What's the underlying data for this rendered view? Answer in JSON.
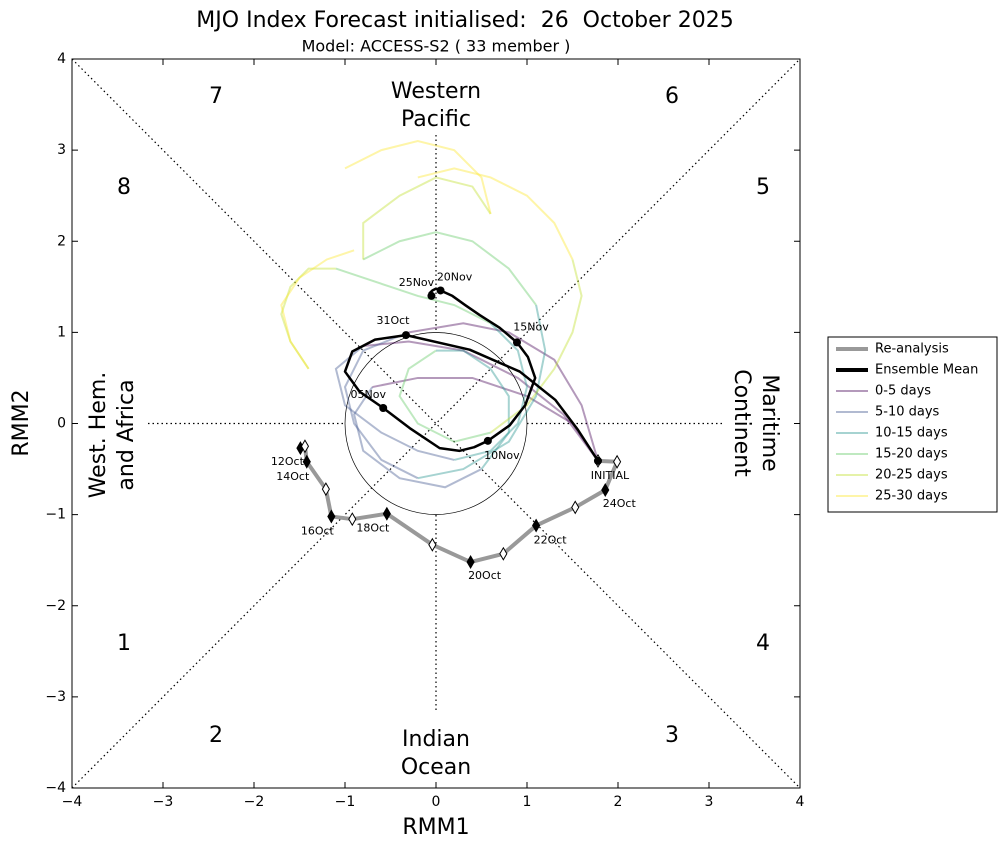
{
  "chart_data": {
    "type": "phase",
    "title": "MJO Index Forecast initialised:  26  October 2025",
    "subtitle": "Model: ACCESS-S2 ( 33 member )",
    "x_label": "RMM1",
    "y_label": "RMM2",
    "xlim": [
      -4,
      4
    ],
    "ylim": [
      -4,
      4
    ],
    "xticks": [
      {
        "value": -4,
        "label": "−4"
      },
      {
        "value": -3,
        "label": "−3"
      },
      {
        "value": -2,
        "label": "−2"
      },
      {
        "value": -1,
        "label": "−1"
      },
      0,
      1,
      2,
      3,
      4
    ],
    "yticks": [
      {
        "value": -4,
        "label": "−4"
      },
      {
        "value": -3,
        "label": "−3"
      },
      {
        "value": -2,
        "label": "−2"
      },
      {
        "value": -1,
        "label": "−1"
      },
      0,
      1,
      2,
      3,
      4
    ],
    "phases": [
      1,
      2,
      3,
      4,
      5,
      6,
      7,
      8
    ],
    "regions": [
      [
        "Western",
        "Pacific"
      ],
      [
        "Indian",
        "Ocean"
      ],
      [
        "West. Hem.",
        "and Africa"
      ],
      [
        "Maritime",
        "Continent"
      ]
    ],
    "legend": "right",
    "member_alpha": 0.4,
    "series": [
      {
        "name": "Re-analysis",
        "color": "#999999",
        "x": [
          -1.49,
          -1.44,
          -1.42,
          -1.21,
          -1.15,
          -0.92,
          -0.54,
          -0.04,
          0.38,
          0.74,
          1.1,
          1.53,
          1.86,
          1.99,
          1.78
        ],
        "values": [
          -0.27,
          -0.25,
          -0.42,
          -0.72,
          -1.02,
          -1.05,
          -0.99,
          -1.33,
          -1.52,
          -1.43,
          -1.12,
          -0.92,
          -0.73,
          -0.42,
          -0.41
        ],
        "labels": [
          "12Oct",
          null,
          "14Oct",
          null,
          "16Oct",
          null,
          "18Oct",
          null,
          "20Oct",
          null,
          "22Oct",
          null,
          "24Oct",
          null,
          null
        ]
      },
      {
        "name": "Ensemble Mean",
        "color": "#000000",
        "x": [
          1.78,
          1.56,
          1.31,
          0.92,
          0.37,
          -0.33,
          -0.67,
          -0.92,
          -1.0,
          -0.84,
          -0.58,
          -0.29,
          0.04,
          0.26,
          0.42,
          0.57,
          0.81,
          0.98,
          1.09,
          1.01,
          0.89,
          0.7,
          0.48,
          0.32,
          0.18,
          0.05,
          0.0,
          -0.04,
          -0.07,
          -0.07,
          -0.05
        ],
        "values": [
          -0.41,
          -0.07,
          0.26,
          0.57,
          0.81,
          0.97,
          0.92,
          0.79,
          0.57,
          0.35,
          0.17,
          -0.05,
          -0.27,
          -0.3,
          -0.26,
          -0.19,
          -0.02,
          0.2,
          0.5,
          0.73,
          0.89,
          1.05,
          1.19,
          1.3,
          1.4,
          1.46,
          1.48,
          1.46,
          1.43,
          1.4,
          1.4
        ],
        "labels": [
          "INITIAL",
          null,
          null,
          null,
          null,
          "31Oct",
          null,
          null,
          null,
          null,
          "05Nov",
          null,
          null,
          null,
          null,
          "10Nov",
          null,
          null,
          null,
          null,
          "15Nov",
          null,
          null,
          null,
          null,
          "20Nov",
          null,
          null,
          null,
          null,
          "25Nov"
        ]
      },
      {
        "name": "0-5 days",
        "color": "#440154",
        "members": [
          {
            "x": [
              1.78,
              1.4,
              0.9,
              0.3,
              -0.3,
              -0.8
            ],
            "values": [
              -0.41,
              0.1,
              0.5,
              0.8,
              0.9,
              0.85
            ]
          },
          {
            "x": [
              1.78,
              1.6,
              1.3,
              0.8,
              0.3,
              -0.3
            ],
            "values": [
              -0.41,
              0.2,
              0.7,
              1.0,
              1.1,
              1.0
            ]
          },
          {
            "x": [
              1.78,
              1.5,
              1.0,
              0.4,
              -0.2,
              -0.7
            ],
            "values": [
              -0.41,
              0.0,
              0.3,
              0.5,
              0.5,
              0.4
            ]
          }
        ]
      },
      {
        "name": "5-10 days",
        "color": "#3b528b",
        "members": [
          {
            "x": [
              -0.8,
              -1.1,
              -1.0,
              -0.6,
              -0.2,
              0.2
            ],
            "values": [
              0.85,
              0.6,
              0.2,
              -0.1,
              -0.3,
              -0.4
            ]
          },
          {
            "x": [
              -0.3,
              -0.8,
              -1.0,
              -0.9,
              -0.6,
              -0.2
            ],
            "values": [
              1.0,
              0.8,
              0.4,
              0.0,
              -0.4,
              -0.6
            ]
          },
          {
            "x": [
              -0.7,
              -0.9,
              -0.8,
              -0.4,
              0.1,
              0.5
            ],
            "values": [
              0.4,
              0.1,
              -0.3,
              -0.6,
              -0.7,
              -0.5
            ]
          }
        ]
      },
      {
        "name": "10-15 days",
        "color": "#21918c",
        "members": [
          {
            "x": [
              0.2,
              0.6,
              0.9,
              1.0,
              0.9,
              0.6
            ],
            "values": [
              -0.4,
              -0.3,
              0.0,
              0.4,
              0.8,
              1.1
            ]
          },
          {
            "x": [
              -0.2,
              0.3,
              0.8,
              1.1,
              1.2,
              1.1
            ],
            "values": [
              -0.6,
              -0.5,
              -0.2,
              0.3,
              0.8,
              1.3
            ]
          },
          {
            "x": [
              0.5,
              0.8,
              0.8,
              0.6,
              0.3,
              0.0
            ],
            "values": [
              -0.5,
              -0.1,
              0.3,
              0.6,
              0.8,
              0.8
            ]
          }
        ]
      },
      {
        "name": "15-20 days",
        "color": "#5ec962",
        "members": [
          {
            "x": [
              0.6,
              0.2,
              -0.2,
              -0.5,
              -0.8,
              -1.1
            ],
            "values": [
              1.1,
              1.3,
              1.4,
              1.5,
              1.6,
              1.7
            ]
          },
          {
            "x": [
              1.1,
              0.8,
              0.4,
              0.0,
              -0.4,
              -0.8
            ],
            "values": [
              1.3,
              1.7,
              2.0,
              2.1,
              2.0,
              1.8
            ]
          },
          {
            "x": [
              0.0,
              -0.3,
              -0.4,
              -0.2,
              0.2,
              0.6
            ],
            "values": [
              0.8,
              0.6,
              0.3,
              0.0,
              -0.2,
              -0.1
            ]
          }
        ]
      },
      {
        "name": "20-25 days",
        "color": "#bddf26",
        "members": [
          {
            "x": [
              -1.1,
              -1.4,
              -1.6,
              -1.7,
              -1.6,
              -1.4
            ],
            "values": [
              1.7,
              1.7,
              1.5,
              1.2,
              0.9,
              0.6
            ]
          },
          {
            "x": [
              -0.8,
              -0.8,
              -0.4,
              0.0,
              0.4,
              0.6
            ],
            "values": [
              1.8,
              2.2,
              2.5,
              2.7,
              2.6,
              2.3
            ]
          },
          {
            "x": [
              0.6,
              1.0,
              1.3,
              1.5,
              1.6,
              1.5
            ],
            "values": [
              -0.1,
              0.2,
              0.6,
              1.0,
              1.4,
              1.8
            ]
          }
        ]
      },
      {
        "name": "25-30 days",
        "color": "#fde725",
        "members": [
          {
            "x": [
              -1.4,
              -1.6,
              -1.7,
              -1.5,
              -1.2,
              -0.9
            ],
            "values": [
              0.6,
              0.9,
              1.3,
              1.6,
              1.8,
              1.9
            ]
          },
          {
            "x": [
              0.6,
              0.5,
              0.2,
              -0.2,
              -0.6,
              -1.0
            ],
            "values": [
              2.3,
              2.7,
              3.0,
              3.1,
              3.0,
              2.8
            ]
          },
          {
            "x": [
              1.5,
              1.3,
              1.0,
              0.6,
              0.2,
              -0.2
            ],
            "values": [
              1.8,
              2.2,
              2.5,
              2.7,
              2.8,
              2.7
            ]
          }
        ]
      }
    ]
  }
}
